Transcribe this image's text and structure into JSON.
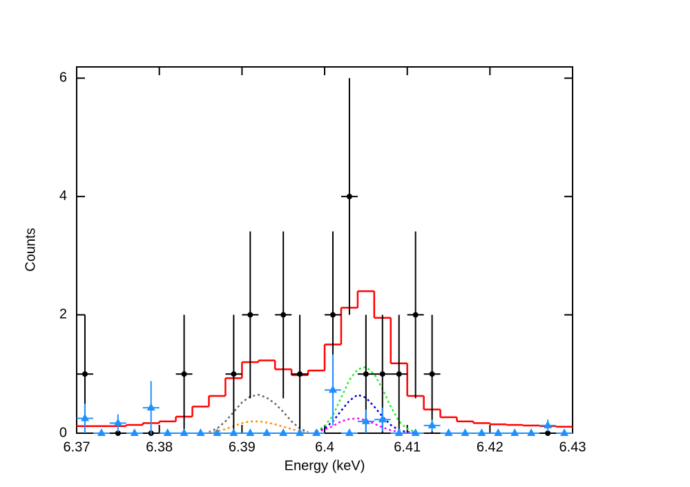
{
  "chart_data": {
    "type": "spectrum",
    "x_label": "Energy (keV)",
    "y_label": "Counts",
    "xlim": [
      6.37,
      6.43
    ],
    "ylim": [
      0,
      6.19
    ],
    "xticks": [
      6.37,
      6.38,
      6.39,
      6.4,
      6.41,
      6.42,
      6.43
    ],
    "yticks": [
      0,
      2,
      4,
      6
    ],
    "series": [
      {
        "type": "step",
        "color": "#ff0000",
        "bins": [
          6.37,
          6.372,
          6.374,
          6.376,
          6.378,
          6.38,
          6.382,
          6.384,
          6.386,
          6.388,
          6.39,
          6.392,
          6.394,
          6.396,
          6.398,
          6.4,
          6.402,
          6.404,
          6.406,
          6.408,
          6.41,
          6.412,
          6.414,
          6.416,
          6.418,
          6.42,
          6.422,
          6.424,
          6.426,
          6.428,
          6.43
        ],
        "values": [
          0.12,
          0.12,
          0.12,
          0.14,
          0.17,
          0.2,
          0.28,
          0.45,
          0.63,
          0.93,
          1.2,
          1.23,
          1.08,
          0.98,
          1.06,
          1.5,
          2.12,
          2.4,
          1.95,
          1.18,
          0.63,
          0.4,
          0.27,
          0.2,
          0.17,
          0.15,
          0.14,
          0.13,
          0.12,
          0.11
        ]
      },
      {
        "type": "line",
        "color": "#666666",
        "dash": true,
        "x": [
          6.386,
          6.387,
          6.388,
          6.389,
          6.39,
          6.391,
          6.392,
          6.393,
          6.394,
          6.395,
          6.396,
          6.397,
          6.398
        ],
        "values": [
          0.02,
          0.08,
          0.2,
          0.36,
          0.52,
          0.62,
          0.65,
          0.6,
          0.5,
          0.36,
          0.2,
          0.08,
          0.02
        ]
      },
      {
        "type": "line",
        "color": "#ff8c00",
        "dash": true,
        "x": [
          6.386,
          6.387,
          6.388,
          6.389,
          6.39,
          6.391,
          6.392,
          6.393,
          6.394,
          6.395,
          6.396,
          6.397,
          6.398
        ],
        "values": [
          0.01,
          0.03,
          0.07,
          0.12,
          0.17,
          0.2,
          0.2,
          0.18,
          0.15,
          0.11,
          0.07,
          0.03,
          0.01
        ]
      },
      {
        "type": "line",
        "color": "#22ee22",
        "dash": true,
        "x": [
          6.399,
          6.4,
          6.401,
          6.402,
          6.403,
          6.404,
          6.405,
          6.406,
          6.407,
          6.408,
          6.409,
          6.41,
          6.411
        ],
        "values": [
          0.03,
          0.12,
          0.3,
          0.6,
          0.9,
          1.08,
          1.12,
          1.0,
          0.75,
          0.45,
          0.2,
          0.07,
          0.02
        ]
      },
      {
        "type": "line",
        "color": "#0000dd",
        "dash": true,
        "x": [
          6.399,
          6.4,
          6.401,
          6.402,
          6.403,
          6.404,
          6.405,
          6.406,
          6.407,
          6.408,
          6.409,
          6.41,
          6.411
        ],
        "values": [
          0.02,
          0.08,
          0.2,
          0.38,
          0.55,
          0.65,
          0.6,
          0.45,
          0.28,
          0.14,
          0.05,
          0.02,
          0.01
        ]
      },
      {
        "type": "line",
        "color": "#ff00ff",
        "dash": true,
        "x": [
          6.399,
          6.4,
          6.401,
          6.402,
          6.403,
          6.404,
          6.405,
          6.406,
          6.407,
          6.408,
          6.409,
          6.41,
          6.411
        ],
        "values": [
          0.02,
          0.06,
          0.12,
          0.2,
          0.24,
          0.25,
          0.22,
          0.16,
          0.1,
          0.05,
          0.02,
          0.01,
          0
        ]
      },
      {
        "type": "errorbar",
        "color": "#000000",
        "marker": "circle",
        "xerr": 0.002,
        "x": [
          6.371,
          6.375,
          6.379,
          6.383,
          6.389,
          6.391,
          6.395,
          6.397,
          6.401,
          6.403,
          6.405,
          6.407,
          6.409,
          6.411,
          6.413,
          6.427
        ],
        "values": [
          1,
          0,
          0,
          1,
          1,
          2,
          2,
          1,
          2,
          4,
          1,
          1,
          1,
          2,
          1,
          0
        ],
        "errors": [
          1,
          0,
          0,
          1,
          1,
          1.41,
          1.41,
          1,
          1.41,
          2,
          1,
          1,
          1,
          1.41,
          1,
          0
        ]
      },
      {
        "type": "errorbar",
        "color": "#1e90ff",
        "marker": "triangle",
        "xerr": 0.002,
        "x": [
          6.371,
          6.373,
          6.375,
          6.377,
          6.379,
          6.381,
          6.383,
          6.385,
          6.387,
          6.389,
          6.391,
          6.393,
          6.395,
          6.397,
          6.399,
          6.401,
          6.403,
          6.405,
          6.407,
          6.409,
          6.411,
          6.413,
          6.415,
          6.417,
          6.419,
          6.421,
          6.423,
          6.425,
          6.427,
          6.429
        ],
        "values": [
          0.25,
          0,
          0.17,
          0,
          0.43,
          0,
          0,
          0,
          0,
          0,
          0,
          0,
          0,
          0,
          0,
          0.73,
          0,
          0.2,
          0.23,
          0,
          0,
          0.13,
          0,
          0,
          0,
          0,
          0,
          0,
          0.13,
          0
        ],
        "errors": [
          0.25,
          0,
          0.15,
          0,
          0.45,
          0,
          0,
          0,
          0,
          0,
          0,
          0,
          0,
          0,
          0,
          0.6,
          0,
          0.2,
          0.2,
          0,
          0,
          0.1,
          0,
          0,
          0,
          0,
          0,
          0,
          0.1,
          0
        ]
      }
    ]
  }
}
